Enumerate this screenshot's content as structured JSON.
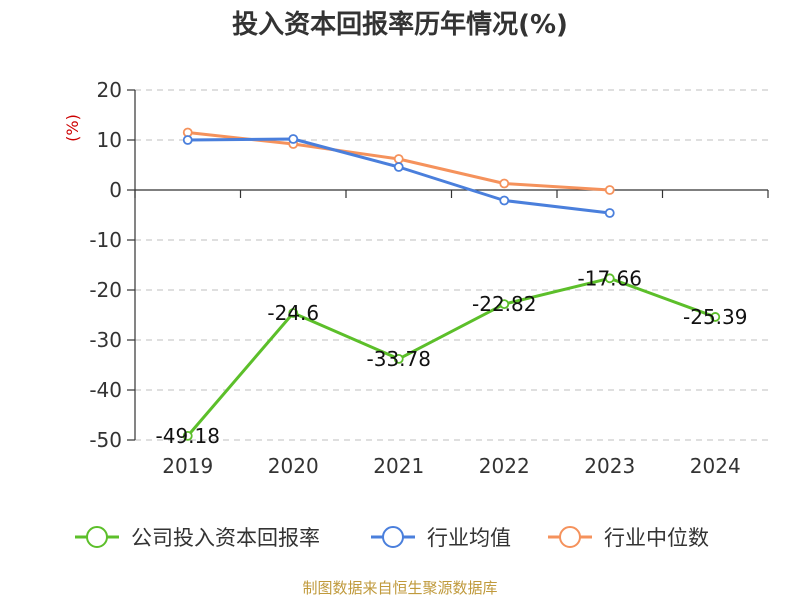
{
  "chart_data": {
    "type": "line",
    "title": "投入资本回报率历年情况(%)",
    "ylabel": "(%)",
    "categories": [
      "2019",
      "2020",
      "2021",
      "2022",
      "2023",
      "2024"
    ],
    "ylim": [
      -50,
      20
    ],
    "yticks": [
      20,
      10,
      0,
      -10,
      -20,
      -30,
      -40,
      -50
    ],
    "ytick_labels": [
      "20",
      "10",
      "0",
      "-10",
      "-20",
      "-30",
      "-40",
      "-50"
    ],
    "grid": true,
    "legend_position": "bottom",
    "series": [
      {
        "name": "公司投入资本回报率",
        "color": "#5cbf2a",
        "values": [
          -49.18,
          -24.6,
          -33.78,
          -22.82,
          -17.66,
          -25.39
        ],
        "labels": [
          "-49.18",
          "-24.6",
          "-33.78",
          "-22.82",
          "-17.66",
          "-25.39"
        ]
      },
      {
        "name": "行业均值",
        "color": "#4a7fdc",
        "values": [
          10.0,
          10.2,
          4.6,
          -2.1,
          -4.6,
          null
        ]
      },
      {
        "name": "行业中位数",
        "color": "#f5925c",
        "values": [
          11.5,
          9.2,
          6.2,
          1.3,
          0.0,
          null
        ]
      }
    ]
  },
  "source": "制图数据来自恒生聚源数据库"
}
